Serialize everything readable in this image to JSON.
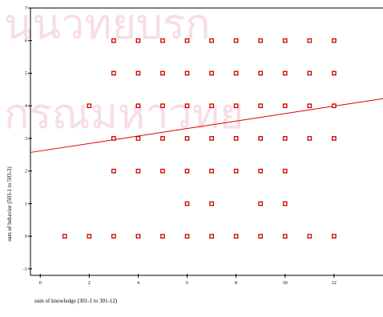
{
  "chart_data": {
    "type": "scatter",
    "xlabel": "sum of knowledge (301-1 to 301-12)",
    "ylabel": "sum of behavior (503-1 to 503-3)",
    "xlim": [
      -0.4,
      14
    ],
    "ylim": [
      -1.2,
      7
    ],
    "xticks": [
      "0",
      "2",
      "4",
      "6",
      "8",
      "10",
      "12"
    ],
    "yticks": [
      "-1",
      "0",
      "1",
      "2",
      "3",
      "4",
      "5",
      "6",
      "7"
    ],
    "grid": false,
    "colors": {
      "marker": "#cc0000",
      "fit_line": "#dd0000",
      "axis": "#000000",
      "watermark": "#f7dde8"
    },
    "points": [
      [
        1,
        0
      ],
      [
        2,
        0
      ],
      [
        3,
        0
      ],
      [
        4,
        0
      ],
      [
        5,
        0
      ],
      [
        6,
        0
      ],
      [
        7,
        0
      ],
      [
        8,
        0
      ],
      [
        9,
        0
      ],
      [
        10,
        0
      ],
      [
        11,
        0
      ],
      [
        12,
        0
      ],
      [
        6,
        1
      ],
      [
        7,
        1
      ],
      [
        9,
        1
      ],
      [
        10,
        1
      ],
      [
        3,
        2
      ],
      [
        4,
        2
      ],
      [
        5,
        2
      ],
      [
        6,
        2
      ],
      [
        7,
        2
      ],
      [
        8,
        2
      ],
      [
        9,
        2
      ],
      [
        10,
        2
      ],
      [
        3,
        3
      ],
      [
        4,
        3
      ],
      [
        5,
        3
      ],
      [
        6,
        3
      ],
      [
        7,
        3
      ],
      [
        8,
        3
      ],
      [
        9,
        3
      ],
      [
        10,
        3
      ],
      [
        11,
        3
      ],
      [
        12,
        3
      ],
      [
        2,
        4
      ],
      [
        4,
        4
      ],
      [
        5,
        4
      ],
      [
        6,
        4
      ],
      [
        7,
        4
      ],
      [
        8,
        4
      ],
      [
        9,
        4
      ],
      [
        10,
        4
      ],
      [
        11,
        4
      ],
      [
        12,
        4
      ],
      [
        3,
        5
      ],
      [
        4,
        5
      ],
      [
        5,
        5
      ],
      [
        6,
        5
      ],
      [
        7,
        5
      ],
      [
        8,
        5
      ],
      [
        9,
        5
      ],
      [
        10,
        5
      ],
      [
        11,
        5
      ],
      [
        12,
        5
      ],
      [
        3,
        6
      ],
      [
        4,
        6
      ],
      [
        5,
        6
      ],
      [
        6,
        6
      ],
      [
        7,
        6
      ],
      [
        8,
        6
      ],
      [
        9,
        6
      ],
      [
        10,
        6
      ],
      [
        11,
        6
      ],
      [
        12,
        6
      ]
    ],
    "fit_line": {
      "x": [
        -0.4,
        14
      ],
      "y": [
        2.57,
        4.22
      ]
    }
  }
}
